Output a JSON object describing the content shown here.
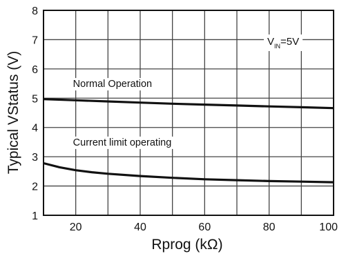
{
  "chart_data": {
    "type": "line",
    "xlabel": "Rprog (kΩ)",
    "ylabel": "Typical VStatus (V)",
    "xlim": [
      10,
      100
    ],
    "ylim": [
      1,
      8
    ],
    "xticks": [
      20,
      40,
      60,
      80,
      100
    ],
    "yticks": [
      1,
      2,
      3,
      4,
      5,
      6,
      7,
      8
    ],
    "grid": true,
    "grid_x_step": 10,
    "grid_y_step": 1,
    "condition": {
      "prefix": "V",
      "subscript": "IN",
      "suffix": "=5V"
    },
    "series": [
      {
        "name": "Normal Operation",
        "x": [
          10,
          20,
          30,
          40,
          50,
          60,
          70,
          80,
          90,
          100
        ],
        "y": [
          4.97,
          4.93,
          4.89,
          4.85,
          4.81,
          4.78,
          4.75,
          4.72,
          4.69,
          4.66
        ]
      },
      {
        "name": "Current limit operating",
        "x": [
          10,
          15,
          20,
          25,
          30,
          40,
          50,
          60,
          70,
          80,
          90,
          100
        ],
        "y": [
          2.78,
          2.64,
          2.54,
          2.47,
          2.42,
          2.34,
          2.28,
          2.23,
          2.2,
          2.17,
          2.15,
          2.13
        ]
      }
    ]
  }
}
